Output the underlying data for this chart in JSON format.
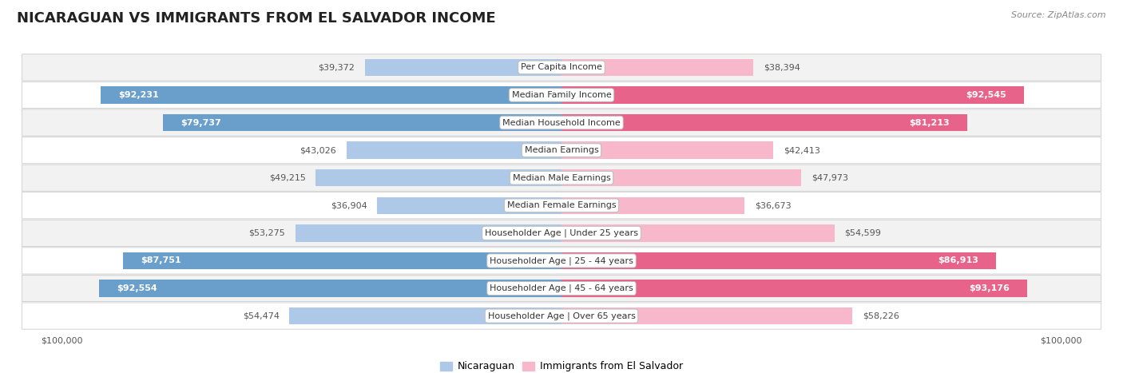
{
  "title": "NICARAGUAN VS IMMIGRANTS FROM EL SALVADOR INCOME",
  "source": "Source: ZipAtlas.com",
  "categories": [
    "Per Capita Income",
    "Median Family Income",
    "Median Household Income",
    "Median Earnings",
    "Median Male Earnings",
    "Median Female Earnings",
    "Householder Age | Under 25 years",
    "Householder Age | 25 - 44 years",
    "Householder Age | 45 - 64 years",
    "Householder Age | Over 65 years"
  ],
  "nicaraguan_values": [
    39372,
    92231,
    79737,
    43026,
    49215,
    36904,
    53275,
    87751,
    92554,
    54474
  ],
  "salvador_values": [
    38394,
    92545,
    81213,
    42413,
    47973,
    36673,
    54599,
    86913,
    93176,
    58226
  ],
  "max_value": 100000,
  "nic_light_color": "#aec9e8",
  "nic_dark_color": "#6a9fcb",
  "sal_light_color": "#f8b8cc",
  "sal_dark_color": "#e8638a",
  "label_threshold": 75000,
  "row_light_color": "#f2f2f2",
  "row_dark_color": "#e8e8e8",
  "border_color": "#cccccc",
  "title_fontsize": 13,
  "legend_fontsize": 9,
  "category_fontsize": 8,
  "value_fontsize": 8
}
